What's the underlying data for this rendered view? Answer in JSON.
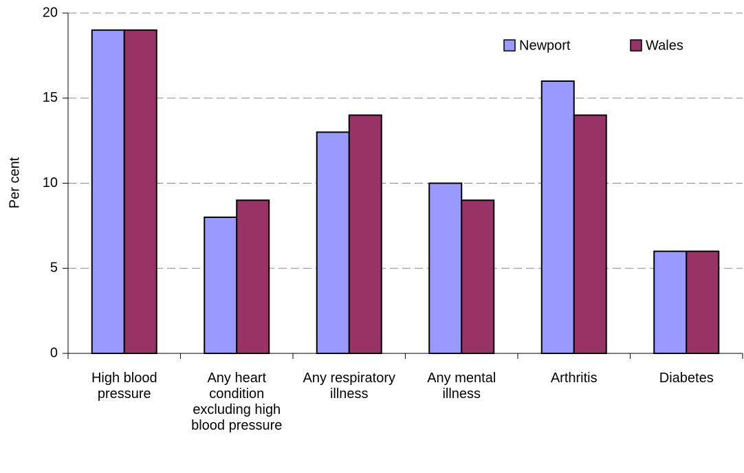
{
  "chart_data": {
    "type": "bar",
    "categories": [
      "High blood pressure",
      "Any heart condition excluding high blood pressure",
      "Any respiratory illness",
      "Any mental illness",
      "Arthritis",
      "Diabetes"
    ],
    "series": [
      {
        "name": "Newport",
        "color": "#9999ff",
        "values": [
          19,
          8,
          13,
          10,
          16,
          6
        ]
      },
      {
        "name": "Wales",
        "color": "#993366",
        "values": [
          19,
          9,
          14,
          9,
          14,
          6
        ]
      }
    ],
    "y_label": "Per cent",
    "ylim": [
      0,
      20
    ],
    "yticks": [
      0,
      5,
      10,
      15,
      20
    ],
    "grid": true,
    "legend": "top-right"
  }
}
